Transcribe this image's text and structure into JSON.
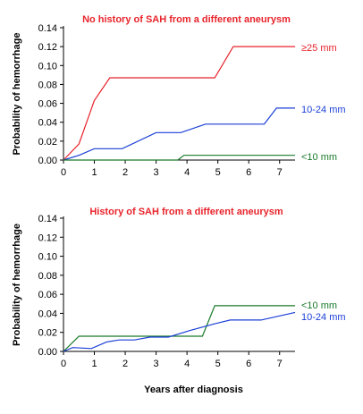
{
  "chart_data": [
    {
      "type": "line",
      "title": "No history of SAH from a different aneurysm",
      "title_color": "#e8232b",
      "ylabel": "Probability of hemorrhage",
      "xlim": [
        0,
        7.5
      ],
      "ylim": [
        0,
        0.14
      ],
      "x_ticks": [
        0,
        1,
        2,
        3,
        4,
        5,
        6,
        7
      ],
      "y_ticks": [
        0,
        0.02,
        0.04,
        0.06,
        0.08,
        0.1,
        0.12,
        0.14
      ],
      "y_tick_labels": [
        "0.00",
        "0.02",
        "0.04",
        "0.06",
        "0.08",
        "0.10",
        "0.12",
        "0.14"
      ],
      "grid": false,
      "series": [
        {
          "name": "≥25 mm",
          "color": "#e8232b",
          "x": [
            0,
            0.5,
            1.0,
            1.5,
            4.9,
            5.5,
            7.5
          ],
          "y": [
            0,
            0.017,
            0.063,
            0.087,
            0.087,
            0.12,
            0.12
          ]
        },
        {
          "name": "10-24 mm",
          "color": "#1a3fd6",
          "x": [
            0,
            0.5,
            1.0,
            1.9,
            3.0,
            3.8,
            4.6,
            6.5,
            6.9,
            7.5
          ],
          "y": [
            0,
            0.005,
            0.012,
            0.012,
            0.029,
            0.029,
            0.038,
            0.038,
            0.055,
            0.055
          ]
        },
        {
          "name": "<10 mm",
          "color": "#1a7a2a",
          "x": [
            0,
            3.7,
            3.9,
            7.5
          ],
          "y": [
            0,
            0,
            0.005,
            0.005
          ]
        }
      ]
    },
    {
      "type": "line",
      "title": "History of SAH from a different aneurysm",
      "title_color": "#e8232b",
      "xlabel": "Years after diagnosis",
      "ylabel": "Probability of hemorrhage",
      "xlim": [
        0,
        7.5
      ],
      "ylim": [
        0,
        0.14
      ],
      "x_ticks": [
        0,
        1,
        2,
        3,
        4,
        5,
        6,
        7
      ],
      "y_ticks": [
        0,
        0.02,
        0.04,
        0.06,
        0.08,
        0.1,
        0.12,
        0.14
      ],
      "y_tick_labels": [
        "0.00",
        "0.02",
        "0.04",
        "0.06",
        "0.08",
        "0.10",
        "0.12",
        "0.14"
      ],
      "grid": false,
      "series": [
        {
          "name": "<10 mm",
          "color": "#1a7a2a",
          "x": [
            0,
            0.5,
            4.5,
            4.9,
            7.5
          ],
          "y": [
            0,
            0.016,
            0.016,
            0.048,
            0.048
          ]
        },
        {
          "name": "10-24 mm",
          "color": "#1a3fd6",
          "x": [
            0,
            0.3,
            0.9,
            1.4,
            1.8,
            2.3,
            2.8,
            3.4,
            4.1,
            4.9,
            5.4,
            6.4,
            7.5
          ],
          "y": [
            0,
            0.004,
            0.003,
            0.01,
            0.012,
            0.012,
            0.015,
            0.015,
            0.022,
            0.029,
            0.033,
            0.033,
            0.041
          ]
        }
      ]
    }
  ]
}
